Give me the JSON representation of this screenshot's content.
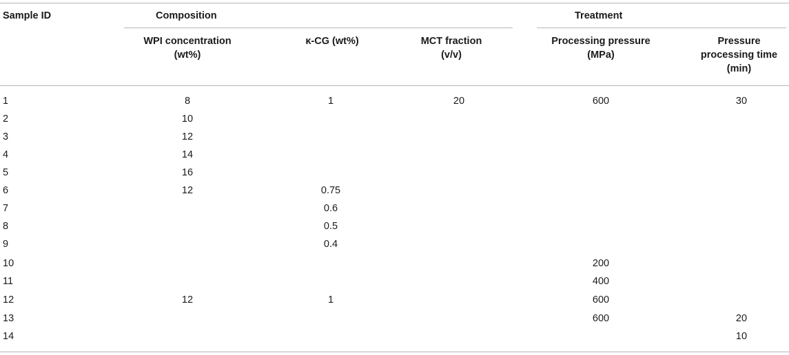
{
  "header": {
    "sample_id": "Sample ID",
    "group_composition": "Composition",
    "group_treatment": "Treatment",
    "columns": [
      [
        "WPI concentration",
        "(wt%)"
      ],
      [
        "κ-CG (wt%)"
      ],
      [
        "MCT fraction",
        "(v/v)"
      ],
      [
        "Processing pressure",
        "(MPa)"
      ],
      [
        "Pressure",
        "processing time",
        "(min)"
      ]
    ]
  },
  "rows": [
    [
      "1",
      "8",
      "1",
      "20",
      "600",
      "30"
    ],
    [
      "2",
      "10",
      "",
      "",
      "",
      ""
    ],
    [
      "3",
      "12",
      "",
      "",
      "",
      ""
    ],
    [
      "4",
      "14",
      "",
      "",
      "",
      ""
    ],
    [
      "5",
      "16",
      "",
      "",
      "",
      ""
    ],
    [
      "6",
      "12",
      "0.75",
      "",
      "",
      ""
    ],
    [
      "7",
      "",
      "0.6",
      "",
      "",
      ""
    ],
    [
      "8",
      "",
      "0.5",
      "",
      "",
      ""
    ],
    [
      "9",
      "",
      "0.4",
      "",
      "",
      ""
    ],
    [
      "10",
      "",
      "",
      "",
      "200",
      ""
    ],
    [
      "11",
      "",
      "",
      "",
      "400",
      ""
    ],
    [
      "12",
      "12",
      "1",
      "",
      "600",
      ""
    ],
    [
      "13",
      "",
      "",
      "",
      "600",
      "20"
    ],
    [
      "14",
      "",
      "",
      "",
      "",
      "10"
    ]
  ]
}
